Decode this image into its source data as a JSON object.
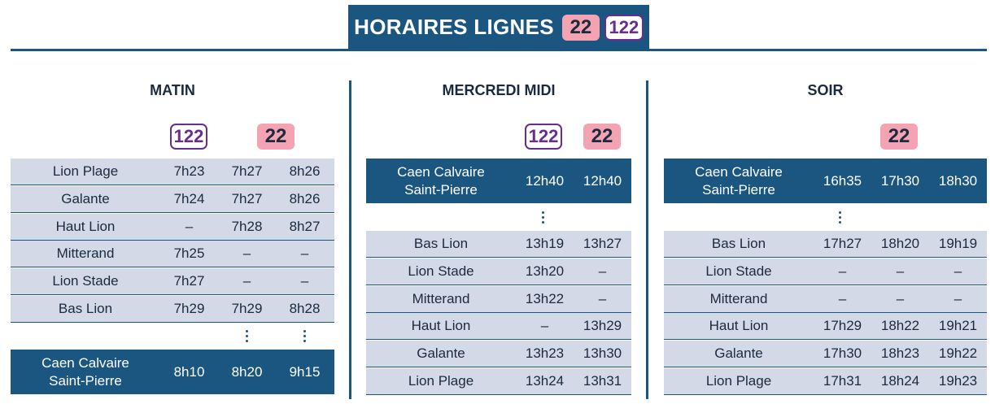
{
  "header": {
    "title": "HORAIRES LIGNES",
    "badge_22": "22",
    "badge_122": "122"
  },
  "matin": {
    "title": "MATIN",
    "badge_122": "122",
    "badge_22": "22",
    "rows": [
      {
        "stop": "Lion Plage",
        "times": [
          "7h23",
          "7h27",
          "8h26"
        ]
      },
      {
        "stop": "Galante",
        "times": [
          "7h24",
          "7h27",
          "8h26"
        ]
      },
      {
        "stop": "Haut Lion",
        "times": [
          "–",
          "7h28",
          "8h27"
        ]
      },
      {
        "stop": "Mitterand",
        "times": [
          "7h25",
          "–",
          "–"
        ]
      },
      {
        "stop": "Lion Stade",
        "times": [
          "7h27",
          "–",
          "–"
        ]
      },
      {
        "stop": "Bas Lion",
        "times": [
          "7h29",
          "7h29",
          "8h28"
        ]
      }
    ],
    "terminus": {
      "stop_line1": "Caen Calvaire",
      "stop_line2": "Saint-Pierre",
      "times": [
        "8h10",
        "8h20",
        "9h15"
      ]
    }
  },
  "mercredi": {
    "title": "MERCREDI MIDI",
    "badge_122": "122",
    "badge_22": "22",
    "origin": {
      "stop_line1": "Caen Calvaire",
      "stop_line2": "Saint-Pierre",
      "times": [
        "12h40",
        "12h40"
      ]
    },
    "rows": [
      {
        "stop": "Bas Lion",
        "times": [
          "13h19",
          "13h27"
        ]
      },
      {
        "stop": "Lion Stade",
        "times": [
          "13h20",
          "–"
        ]
      },
      {
        "stop": "Mitterand",
        "times": [
          "13h22",
          "–"
        ]
      },
      {
        "stop": "Haut Lion",
        "times": [
          "–",
          "13h29"
        ]
      },
      {
        "stop": "Galante",
        "times": [
          "13h23",
          "13h30"
        ]
      },
      {
        "stop": "Lion Plage",
        "times": [
          "13h24",
          "13h31"
        ]
      }
    ]
  },
  "soir": {
    "title": "SOIR",
    "badge_22": "22",
    "origin": {
      "stop_line1": "Caen Calvaire",
      "stop_line2": "Saint-Pierre",
      "times": [
        "16h35",
        "17h30",
        "18h30"
      ]
    },
    "rows": [
      {
        "stop": "Bas Lion",
        "times": [
          "17h27",
          "18h20",
          "19h19"
        ]
      },
      {
        "stop": "Lion Stade",
        "times": [
          "–",
          "–",
          "–"
        ]
      },
      {
        "stop": "Mitterand",
        "times": [
          "–",
          "–",
          "–"
        ]
      },
      {
        "stop": "Haut Lion",
        "times": [
          "17h29",
          "18h22",
          "19h21"
        ]
      },
      {
        "stop": "Galante",
        "times": [
          "17h30",
          "18h23",
          "19h22"
        ]
      },
      {
        "stop": "Lion Plage",
        "times": [
          "17h31",
          "18h24",
          "19h23"
        ]
      }
    ]
  }
}
